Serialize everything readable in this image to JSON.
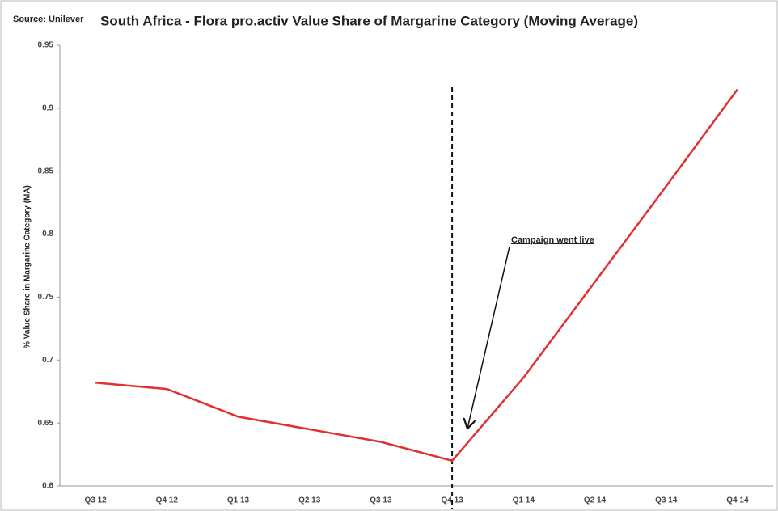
{
  "chart_data": {
    "type": "line",
    "source": "Source: Unilever",
    "title": "South Africa - Flora pro.activ Value Share of Margarine Category (Moving Average)",
    "y_label": "% Value Share in Margarine Category (MA)",
    "annotation": "Campaign went live",
    "categories": [
      "Q3 12",
      "Q4 12",
      "Q1 13",
      "Q2 13",
      "Q3 13",
      "Q4 13",
      "Q1 14",
      "Q2 14",
      "Q3 14",
      "Q4 14"
    ],
    "series": [
      {
        "name": "Flora pro.activ",
        "color": "#e03030",
        "values": [
          0.682,
          0.677,
          0.655,
          0.645,
          0.635,
          0.62,
          0.686,
          0.762,
          0.838,
          0.915
        ]
      }
    ],
    "ylim": [
      0.6,
      0.95
    ],
    "yticks": [
      0.6,
      0.65,
      0.7,
      0.75,
      0.8,
      0.85,
      0.9,
      0.95
    ],
    "grid": false
  }
}
